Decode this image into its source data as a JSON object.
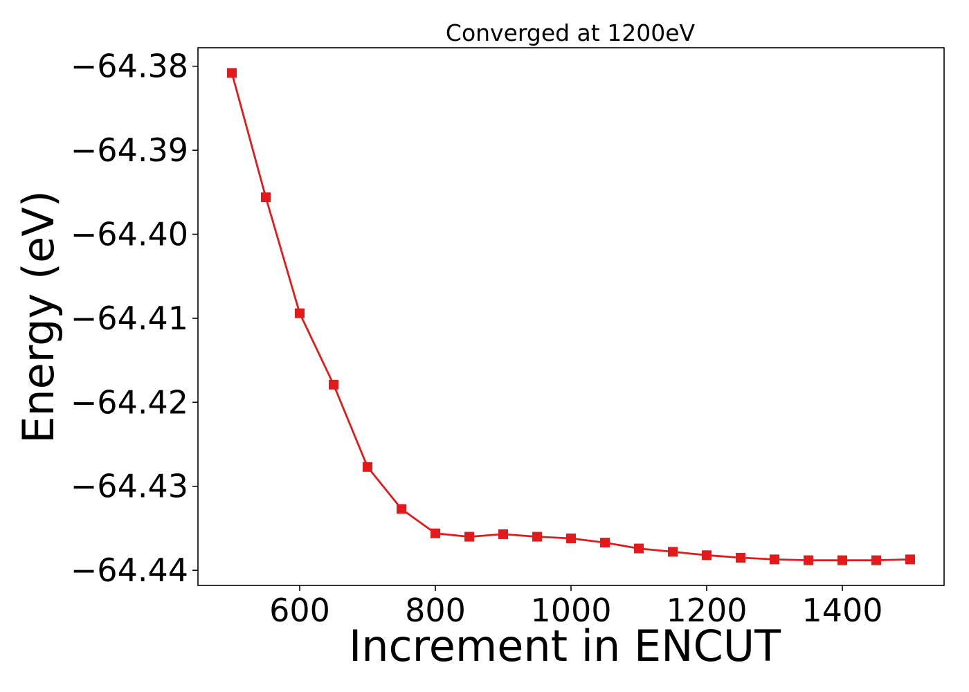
{
  "chart_data": {
    "type": "line",
    "title": "Converged at 1200eV",
    "xlabel": "Increment in ENCUT",
    "ylabel": "Energy (eV)",
    "xlim": [
      450,
      1550
    ],
    "ylim": [
      -64.4418,
      -64.3778
    ],
    "x_ticks": [
      600,
      800,
      1000,
      1200,
      1400
    ],
    "x_tick_labels": [
      "600",
      "800",
      "1000",
      "1200",
      "1400"
    ],
    "y_ticks": [
      -64.38,
      -64.39,
      -64.4,
      -64.41,
      -64.42,
      -64.43,
      -64.44
    ],
    "y_tick_labels": [
      "−64.38",
      "−64.39",
      "−64.40",
      "−64.41",
      "−64.42",
      "−64.43",
      "−64.44"
    ],
    "grid": false,
    "series": [
      {
        "color": "#e31a1c",
        "marker": "square",
        "x": [
          500,
          550,
          600,
          650,
          700,
          750,
          800,
          850,
          900,
          950,
          1000,
          1050,
          1100,
          1150,
          1200,
          1250,
          1300,
          1350,
          1400,
          1450,
          1500
        ],
        "y": [
          -64.3808,
          -64.3956,
          -64.4094,
          -64.4179,
          -64.4277,
          -64.4327,
          -64.4356,
          -64.436,
          -64.4357,
          -64.436,
          -64.4362,
          -64.4367,
          -64.4374,
          -64.4378,
          -64.4382,
          -64.4385,
          -64.4387,
          -64.4388,
          -64.4388,
          -64.4388,
          -64.4387
        ]
      }
    ]
  }
}
